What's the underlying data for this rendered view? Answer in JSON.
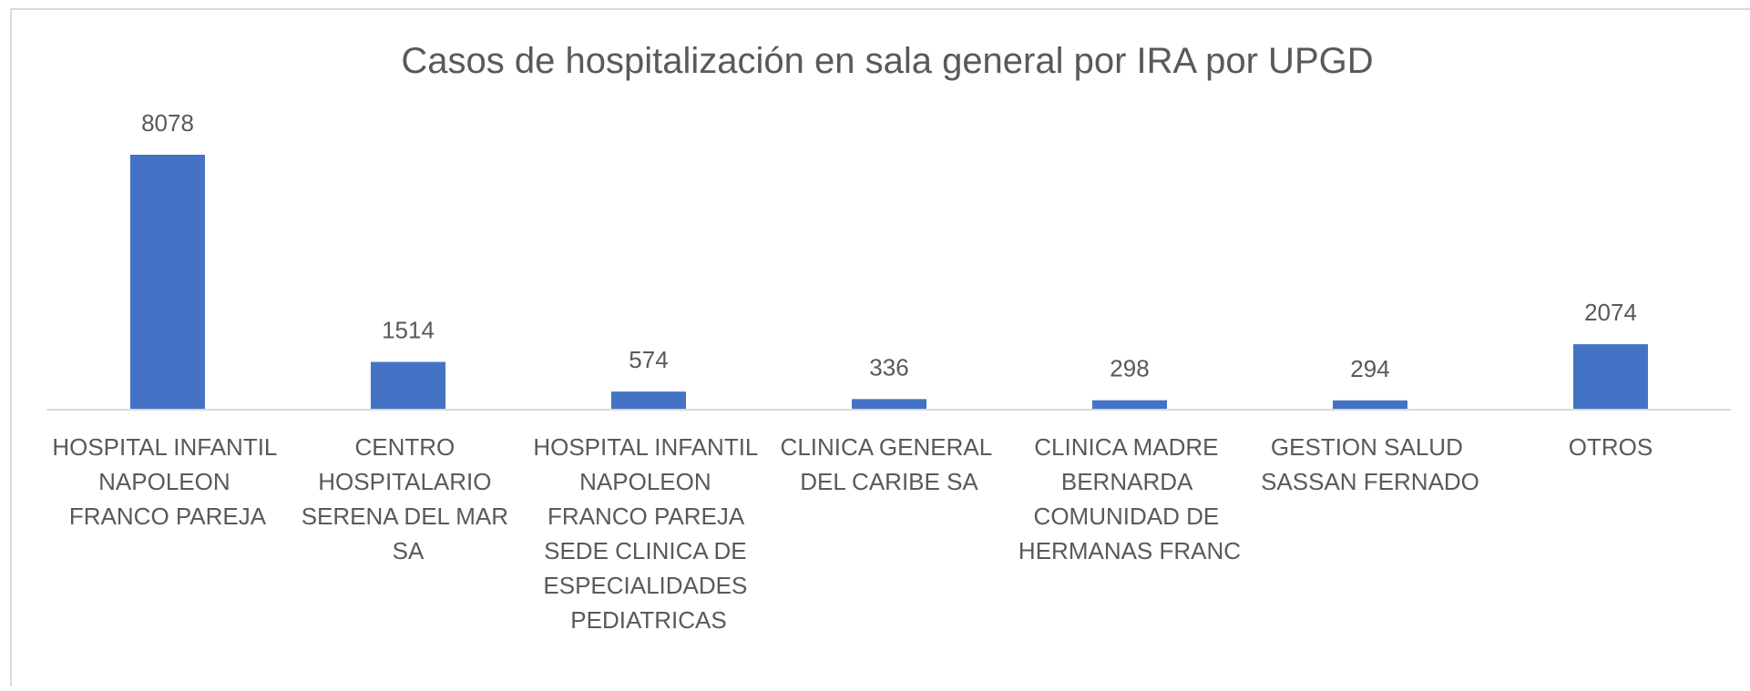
{
  "chart_data": {
    "type": "bar",
    "title": "Casos de hospitalización en sala general por IRA por UPGD",
    "categories": [
      "HOSPITAL INFANTIL NAPOLEON FRANCO PAREJA",
      "CENTRO HOSPITALARIO SERENA DEL MAR SA",
      "HOSPITAL INFANTIL NAPOLEON FRANCO PAREJA SEDE CLINICA DE ESPECIALIDADES PEDIATRICAS",
      "CLINICA GENERAL DEL CARIBE SA",
      "CLINICA MADRE BERNARDA COMUNIDAD DE HERMANAS FRANC",
      "GESTION SALUD SASSAN FERNADO",
      "OTROS"
    ],
    "values": [
      8078,
      1514,
      574,
      336,
      298,
      294,
      2074
    ],
    "color": "#4472c4",
    "ylim": [
      0,
      9000
    ]
  }
}
